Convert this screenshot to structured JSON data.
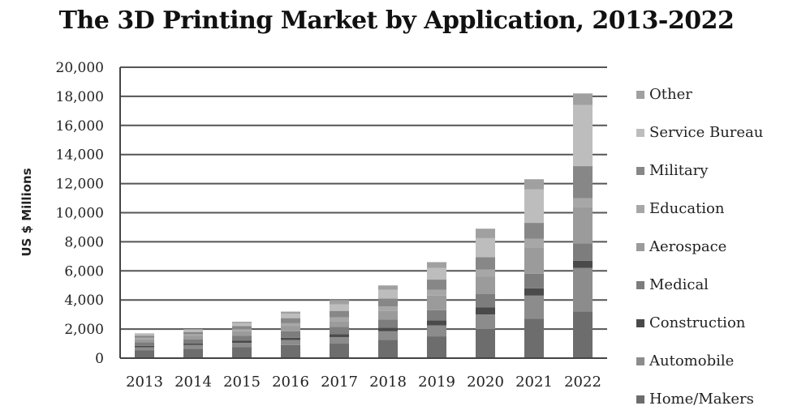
{
  "chart_data": {
    "type": "bar",
    "stacked": true,
    "title": "The 3D Printing Market by Application, 2013-2022",
    "xlabel": "",
    "ylabel": "US $ Millions",
    "ylim": [
      0,
      20000
    ],
    "yticks": [
      "0",
      "2,000",
      "4,000",
      "6,000",
      "8,000",
      "10,000",
      "12,000",
      "14,000",
      "16,000",
      "18,000",
      "20,000"
    ],
    "grid": true,
    "legend_position": "right",
    "categories": [
      "2013",
      "2014",
      "2015",
      "2016",
      "2017",
      "2018",
      "2019",
      "2020",
      "2021",
      "2022"
    ],
    "series": [
      {
        "name": "Home/Makers",
        "color": "#6d6d6d",
        "values": [
          550,
          650,
          750,
          900,
          1000,
          1250,
          1500,
          2000,
          2700,
          3200
        ]
      },
      {
        "name": "Automobile",
        "color": "#8c8c8c",
        "values": [
          200,
          250,
          300,
          350,
          450,
          600,
          750,
          1000,
          1600,
          3000
        ]
      },
      {
        "name": "Construction",
        "color": "#4a4a4a",
        "values": [
          100,
          100,
          150,
          150,
          200,
          250,
          350,
          500,
          500,
          500
        ]
      },
      {
        "name": "Medical",
        "color": "#7d7d7d",
        "values": [
          250,
          300,
          350,
          450,
          500,
          550,
          700,
          900,
          1000,
          1200
        ]
      },
      {
        "name": "Aerospace",
        "color": "#9b9b9b",
        "values": [
          200,
          250,
          300,
          350,
          400,
          600,
          1000,
          1200,
          1800,
          2500
        ]
      },
      {
        "name": "Education",
        "color": "#a7a7a7",
        "values": [
          100,
          100,
          150,
          200,
          250,
          300,
          400,
          500,
          600,
          600
        ]
      },
      {
        "name": "Military",
        "color": "#878787",
        "values": [
          150,
          150,
          200,
          350,
          450,
          550,
          700,
          850,
          1100,
          2200
        ]
      },
      {
        "name": "Service Bureau",
        "color": "#bdbdbd",
        "values": [
          100,
          150,
          200,
          300,
          450,
          600,
          800,
          1300,
          2300,
          4200
        ]
      },
      {
        "name": "Other",
        "color": "#a0a0a0",
        "values": [
          50,
          50,
          100,
          150,
          300,
          300,
          400,
          650,
          700,
          800
        ]
      }
    ]
  }
}
